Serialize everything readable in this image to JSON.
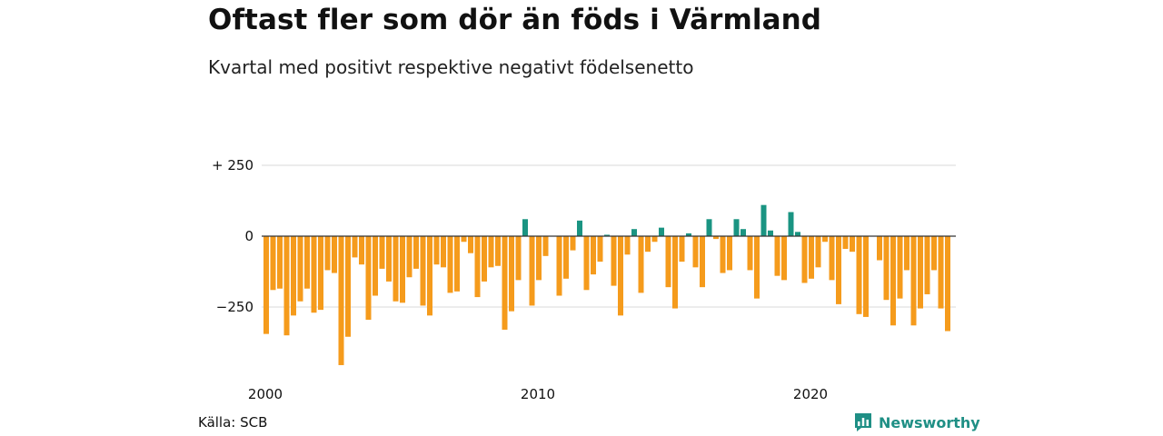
{
  "title": "Oftast fler som dör än föds i Värmland",
  "subtitle": "Kvartal med positivt respektive negativt födelsenetto",
  "source": "Källa: SCB",
  "brand": {
    "name": "Newsworthy",
    "icon": "newsworthy-logo-icon"
  },
  "colors": {
    "positive": "#1a9482",
    "negative": "#f59b1c",
    "grid": "#d9d9d9",
    "zero": "#333333"
  },
  "chart_data": {
    "type": "bar",
    "title": "Oftast fler som dör än föds i Värmland",
    "subtitle": "Kvartal med positivt respektive negativt födelsenetto",
    "xlabel": "",
    "ylabel": "",
    "x_ticks": [
      "2000",
      "2010",
      "2020"
    ],
    "y_ticks": [
      {
        "value": 250,
        "label": "+ 250"
      },
      {
        "value": 0,
        "label": "0"
      },
      {
        "value": -250,
        "label": "−250"
      }
    ],
    "ylim": [
      -470,
      250
    ],
    "grid": true,
    "start": "2000 Q1",
    "frequency": "quarterly",
    "values": [
      -345,
      -190,
      -185,
      -350,
      -280,
      -230,
      -185,
      -270,
      -260,
      -120,
      -130,
      -455,
      -355,
      -75,
      -100,
      -295,
      -210,
      -115,
      -160,
      -230,
      -235,
      -145,
      -115,
      -245,
      -280,
      -100,
      -110,
      -200,
      -195,
      -20,
      -60,
      -215,
      -160,
      -110,
      -105,
      -330,
      -265,
      -155,
      60,
      -245,
      -155,
      -70,
      0,
      -210,
      -150,
      -50,
      55,
      -190,
      -135,
      -90,
      5,
      -175,
      -280,
      -65,
      25,
      -200,
      -55,
      -20,
      30,
      -180,
      -255,
      -90,
      10,
      -110,
      -180,
      60,
      -10,
      -130,
      -120,
      60,
      25,
      -120,
      -220,
      110,
      20,
      -140,
      -155,
      85,
      15,
      -165,
      -150,
      -110,
      -20,
      -155,
      -240,
      -45,
      -55,
      -275,
      -285,
      0,
      -85,
      -225,
      -315,
      -220,
      -120,
      -315,
      -255,
      -205,
      -120,
      -255,
      -335
    ]
  }
}
